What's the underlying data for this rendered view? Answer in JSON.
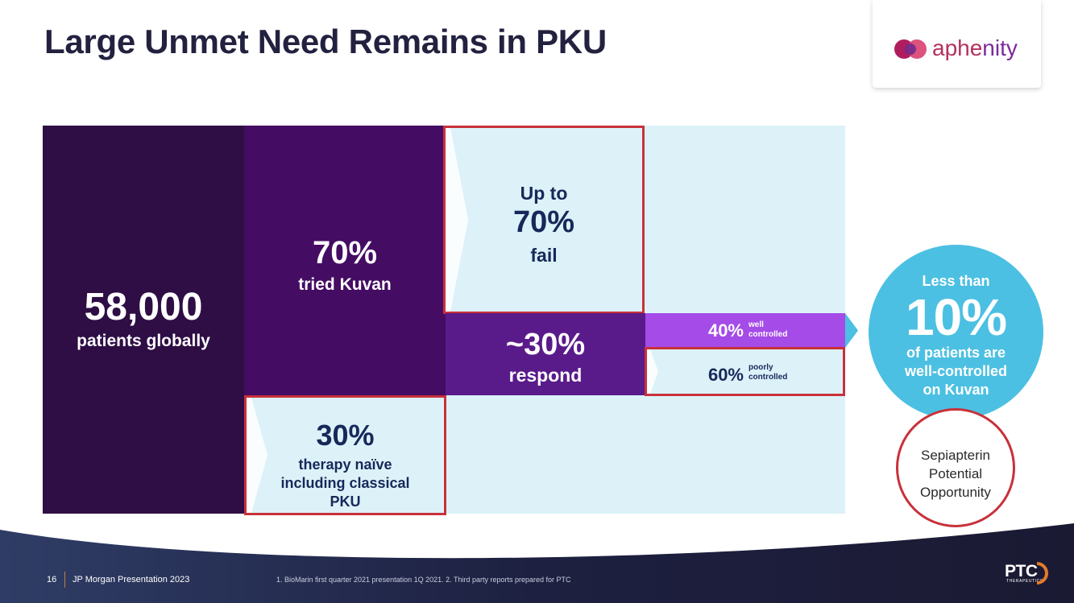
{
  "title": "Large Unmet Need Remains in PKU",
  "brand": {
    "logo_text_1": "aphe",
    "logo_text_2": "nity"
  },
  "blocks": {
    "patients_value": "58,000",
    "patients_label": "patients globally",
    "kuvan_value": "70%",
    "kuvan_label": "tried Kuvan",
    "fail_prefix": "Up to",
    "fail_value": "70%",
    "fail_label": "fail",
    "respond_value": "~30%",
    "respond_label": "respond",
    "well_value": "40%",
    "well_label_1": "well",
    "well_label_2": "controlled",
    "poor_value": "60%",
    "poor_label_1": "poorly",
    "poor_label_2": "controlled",
    "naive_value": "30%",
    "naive_label_1": "therapy naïve",
    "naive_label_2": "including classical",
    "naive_label_3": "PKU"
  },
  "highlight": {
    "prefix": "Less than",
    "value": "10%",
    "label_1": "of patients are",
    "label_2": "well-controlled",
    "label_3": "on Kuvan"
  },
  "opportunity": {
    "line_1": "Sepiapterin",
    "line_2": "Potential",
    "line_3": "Opportunity"
  },
  "footer": {
    "page_number": "16",
    "event": "JP Morgan Presentation 2023",
    "footnote": "1. BioMarin first quarter 2021 presentation 1Q 2021. 2. Third party reports prepared for PTC",
    "company": "PTC",
    "company_sub": "THERAPEUTICS"
  },
  "colors": {
    "title": "#22213f",
    "dark_purple": "#2e0e45",
    "purple": "#450c63",
    "mid_purple": "#5a1b8a",
    "light_purple": "#a54be8",
    "light_blue": "#dcf2f8",
    "cyan": "#4cc0e2",
    "red_outline": "#c8313a",
    "navy_text": "#17285a"
  }
}
